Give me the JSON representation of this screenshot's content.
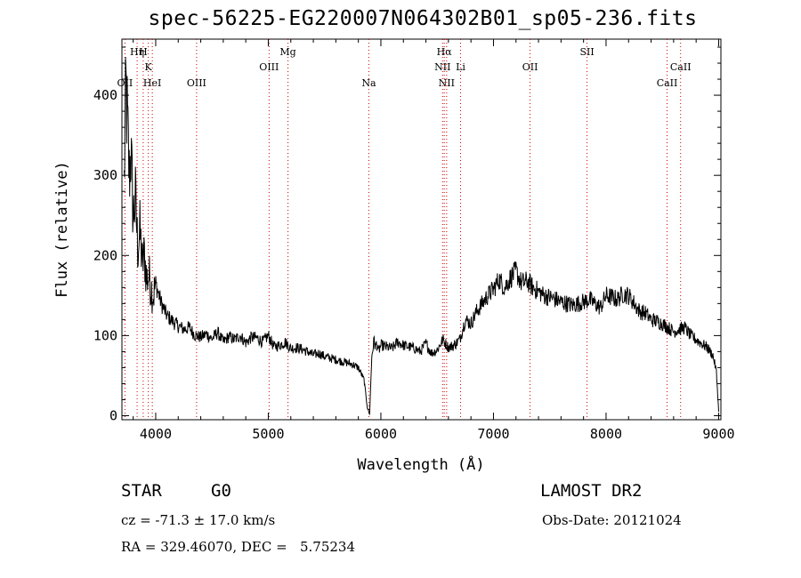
{
  "title": "spec-56225-EG220007N064302B01_sp05-236.fits",
  "footer": {
    "class_label": "STAR",
    "subclass": "G0",
    "survey": "LAMOST DR2",
    "redshift_text": "cz = -71.3 ± 17.0 km/s",
    "obs_date_text": "Obs-Date: 20121024",
    "coords_text": "RA = 329.46070, DEC =   5.75234"
  },
  "chart_data": {
    "type": "line",
    "xlabel": "Wavelength (Å)",
    "ylabel": "Flux (relative)",
    "xlim": [
      3700,
      9020
    ],
    "ylim": [
      -5,
      470
    ],
    "xticks": [
      4000,
      5000,
      6000,
      7000,
      8000,
      9000
    ],
    "yticks": [
      0,
      100,
      200,
      300,
      400
    ],
    "grid": false,
    "line_color": "#000000",
    "marker_color": "#cc0000",
    "spectral_lines": [
      {
        "label": "OII",
        "wavelength": 3727,
        "row": 3
      },
      {
        "label": "Hη",
        "wavelength": 3835,
        "row": 1
      },
      {
        "label": "H",
        "wavelength": 3889,
        "row": 1
      },
      {
        "label": "K",
        "wavelength": 3934,
        "row": 2
      },
      {
        "label": "HeI",
        "wavelength": 3970,
        "row": 3
      },
      {
        "label": "OIII",
        "wavelength": 4363,
        "row": 3
      },
      {
        "label": "OIII",
        "wavelength": 5007,
        "row": 2
      },
      {
        "label": "Mg",
        "wavelength": 5175,
        "row": 1
      },
      {
        "label": "Na",
        "wavelength": 5893,
        "row": 3
      },
      {
        "label": "Hα",
        "wavelength": 6563,
        "row": 1
      },
      {
        "label": "NII",
        "wavelength": 6548,
        "row": 2
      },
      {
        "label": "Li",
        "wavelength": 6708,
        "row": 2
      },
      {
        "label": "NII",
        "wavelength": 6584,
        "row": 3
      },
      {
        "label": "OII",
        "wavelength": 7325,
        "row": 2
      },
      {
        "label": "SII",
        "wavelength": 7831,
        "row": 1
      },
      {
        "label": "CaII",
        "wavelength": 8662,
        "row": 2
      },
      {
        "label": "CaII",
        "wavelength": 8542,
        "row": 3
      }
    ],
    "series": [
      {
        "x": [
          3720,
          3735,
          3750,
          3765,
          3780,
          3800,
          3820,
          3840,
          3860,
          3880,
          3900,
          3920,
          3940,
          3960,
          3980,
          4000,
          4050,
          4100,
          4150,
          4200,
          4250,
          4300,
          4350,
          4400,
          4450,
          4500,
          4550,
          4600,
          4650,
          4700,
          4750,
          4800,
          4850,
          4900,
          4950,
          5000,
          5050,
          5100,
          5150,
          5200,
          5250,
          5300,
          5350,
          5400,
          5450,
          5500,
          5550,
          5600,
          5650,
          5700,
          5750,
          5800,
          5850,
          5880,
          5900,
          5920,
          5940,
          5950,
          5960,
          5980,
          6000,
          6050,
          6100,
          6150,
          6200,
          6250,
          6300,
          6350,
          6400,
          6450,
          6500,
          6550,
          6600,
          6650,
          6700,
          6750,
          6800,
          6850,
          6900,
          6950,
          7000,
          7050,
          7100,
          7150,
          7200,
          7250,
          7300,
          7350,
          7400,
          7450,
          7500,
          7550,
          7600,
          7650,
          7700,
          7750,
          7800,
          7850,
          7900,
          7950,
          8000,
          8050,
          8100,
          8150,
          8200,
          8250,
          8300,
          8350,
          8400,
          8450,
          8500,
          8550,
          8600,
          8650,
          8700,
          8750,
          8800,
          8850,
          8900,
          8950,
          8980,
          9000
        ],
        "y": [
          290,
          410,
          360,
          300,
          330,
          250,
          270,
          210,
          230,
          190,
          200,
          170,
          175,
          160,
          150,
          165,
          140,
          125,
          118,
          112,
          108,
          110,
          100,
          98,
          102,
          96,
          104,
          92,
          99,
          95,
          100,
          91,
          98,
          97,
          92,
          100,
          86,
          88,
          92,
          84,
          85,
          83,
          80,
          76,
          78,
          74,
          72,
          70,
          68,
          66,
          64,
          60,
          45,
          10,
          2,
          75,
          95,
          85,
          90,
          80,
          88,
          86,
          84,
          92,
          88,
          86,
          84,
          80,
          90,
          78,
          82,
          95,
          85,
          88,
          95,
          120,
          115,
          130,
          140,
          150,
          158,
          170,
          160,
          172,
          180,
          165,
          168,
          160,
          155,
          150,
          148,
          145,
          142,
          140,
          138,
          140,
          142,
          145,
          140,
          135,
          150,
          148,
          145,
          152,
          150,
          140,
          130,
          128,
          120,
          118,
          115,
          110,
          105,
          108,
          110,
          100,
          95,
          90,
          85,
          75,
          55,
          5
        ]
      }
    ]
  }
}
